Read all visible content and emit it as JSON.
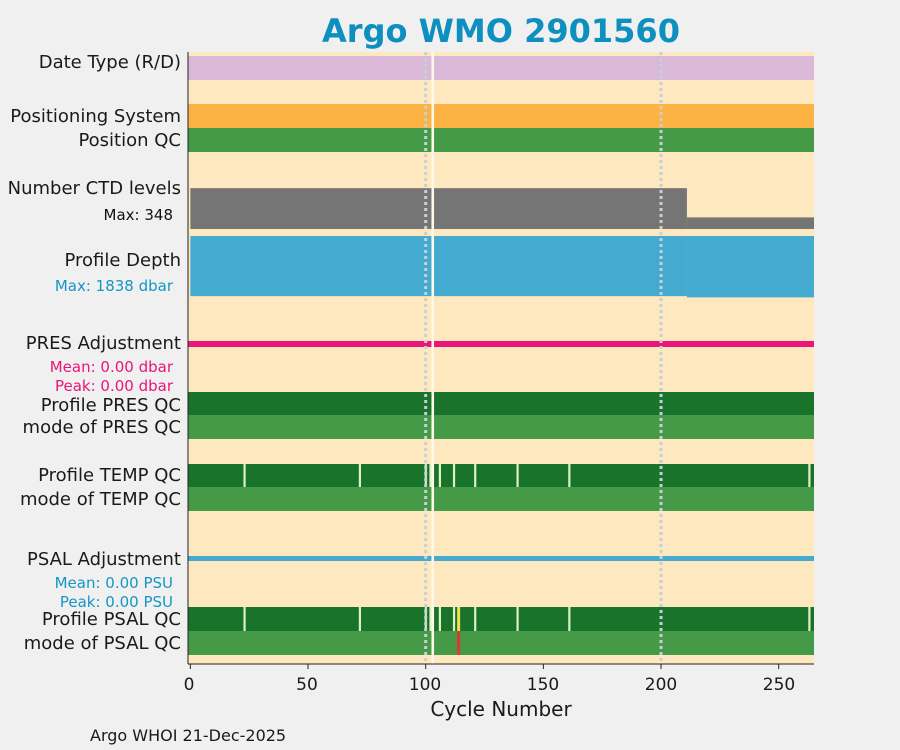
{
  "chart_data": {
    "type": "timeline",
    "title": "Argo WMO 2901560",
    "xlabel": "Cycle Number",
    "xlim": [
      -1,
      265
    ],
    "xticks": [
      0,
      50,
      100,
      150,
      200,
      250
    ],
    "dotted_cycles": [
      100,
      200
    ],
    "white_gap_cycle": 103,
    "rows": [
      {
        "id": "date_type",
        "label": "Date Type (R/D)",
        "color": "#dab8d8"
      },
      {
        "id": "positioning_system",
        "label": "Positioning System",
        "color": "#fdb343"
      },
      {
        "id": "position_qc",
        "label": "Position QC",
        "color": "#459a47"
      },
      {
        "id": "num_ctd_levels",
        "label": "Number CTD levels",
        "stat": "Max: 348",
        "color": "#757575",
        "segments": [
          {
            "from": 0,
            "to": 211,
            "level": 0.95
          },
          {
            "from": 211,
            "to": 265,
            "level": 0.27
          }
        ]
      },
      {
        "id": "profile_depth",
        "label": "Profile Depth",
        "stat": "Max: 1838 dbar",
        "color": "#45aad0",
        "segments": [
          {
            "from": 0,
            "to": 211,
            "level": 0.97
          },
          {
            "from": 211,
            "to": 265,
            "level": 0.99
          }
        ]
      },
      {
        "id": "pres_adjustment",
        "label": "PRES Adjustment",
        "color": "#e9157b",
        "stats": [
          "Mean: 0.00 dbar",
          "Peak: 0.00 dbar"
        ]
      },
      {
        "id": "profile_pres_qc",
        "label": "Profile PRES QC",
        "color": "#19732a"
      },
      {
        "id": "mode_pres_qc",
        "label": "mode of PRES QC",
        "color": "#459a47"
      },
      {
        "id": "profile_temp_qc",
        "label": "Profile TEMP QC",
        "color": "#19732a",
        "marks": [
          23,
          72,
          100,
          102,
          106,
          112,
          121,
          139,
          161,
          263
        ]
      },
      {
        "id": "mode_temp_qc",
        "label": "mode of TEMP QC",
        "color": "#459a47"
      },
      {
        "id": "psal_adjustment",
        "label": "PSAL Adjustment",
        "color": "#45aad0",
        "stats": [
          "Mean: 0.00 PSU",
          "Peak: 0.00 PSU"
        ]
      },
      {
        "id": "profile_psal_qc",
        "label": "Profile PSAL QC",
        "color": "#19732a",
        "marks": [
          23,
          72,
          100,
          102,
          106,
          112,
          121,
          139,
          161,
          263
        ],
        "yellow_marks": [
          114
        ]
      },
      {
        "id": "mode_psal_qc",
        "label": "mode of PSAL QC",
        "color": "#459a47",
        "red_marks": [
          114
        ]
      }
    ],
    "colors": {
      "background": "#fde8c0",
      "title": "#0d8fbf",
      "mark": "#dff0c8",
      "yellow": "#f2e34c",
      "red": "#dd3a2f",
      "dotted": "#c6d0d6"
    }
  },
  "footer": "Argo WHOI 21-Dec-2025"
}
